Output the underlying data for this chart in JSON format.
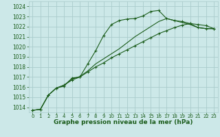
{
  "title": "Graphe pression niveau de la mer (hPa)",
  "bg_color": "#cce8e8",
  "grid_color": "#aacccc",
  "line_color": "#1a5c1a",
  "xlim": [
    -0.5,
    23.5
  ],
  "ylim": [
    1013.5,
    1024.5
  ],
  "yticks": [
    1014,
    1015,
    1016,
    1017,
    1018,
    1019,
    1020,
    1021,
    1022,
    1023,
    1024
  ],
  "xticks": [
    0,
    1,
    2,
    3,
    4,
    5,
    6,
    7,
    8,
    9,
    10,
    11,
    12,
    13,
    14,
    15,
    16,
    17,
    18,
    19,
    20,
    21,
    22,
    23
  ],
  "series": [
    [
      1013.7,
      1013.8,
      1015.2,
      1015.9,
      1016.1,
      1016.9,
      1017.0,
      1018.3,
      1019.6,
      1021.1,
      1022.2,
      1022.6,
      1022.75,
      1022.8,
      1023.05,
      1023.5,
      1023.6,
      1022.8,
      1022.6,
      1022.5,
      1022.3,
      1021.9,
      1021.8,
      1021.8
    ],
    [
      1013.7,
      1013.8,
      1015.2,
      1015.9,
      1016.2,
      1016.8,
      1017.05,
      1017.6,
      1018.3,
      1018.8,
      1019.3,
      1019.8,
      1020.4,
      1021.0,
      1021.5,
      1022.0,
      1022.5,
      1022.8,
      1022.6,
      1022.4,
      1022.2,
      1021.9,
      1021.8,
      1021.8
    ],
    [
      1013.7,
      1013.8,
      1015.2,
      1015.9,
      1016.2,
      1016.7,
      1017.0,
      1017.5,
      1018.0,
      1018.4,
      1018.9,
      1019.3,
      1019.7,
      1020.1,
      1020.5,
      1020.9,
      1021.3,
      1021.6,
      1021.9,
      1022.15,
      1022.3,
      1022.2,
      1022.1,
      1021.8
    ]
  ],
  "xlabel_fontsize": 6.5,
  "ytick_fontsize": 5.5,
  "xtick_fontsize": 5.0,
  "linewidth": 0.8,
  "markersize": 3.0,
  "markeredgewidth": 0.8
}
